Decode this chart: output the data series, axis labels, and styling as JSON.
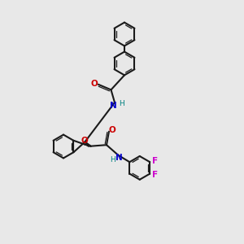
{
  "bg_color": "#e8e8e8",
  "bond_color": "#1a1a1a",
  "N_color": "#0000cc",
  "O_color": "#cc0000",
  "F_color": "#cc00cc",
  "H_color": "#008080",
  "figsize": [
    3.0,
    3.0
  ],
  "dpi": 100,
  "lw": 1.5,
  "lw2": 0.9,
  "r_hex": 0.48,
  "xlim": [
    0,
    10
  ],
  "ylim": [
    0,
    10
  ],
  "font_size_atom": 7.5,
  "font_size_H": 6.5
}
